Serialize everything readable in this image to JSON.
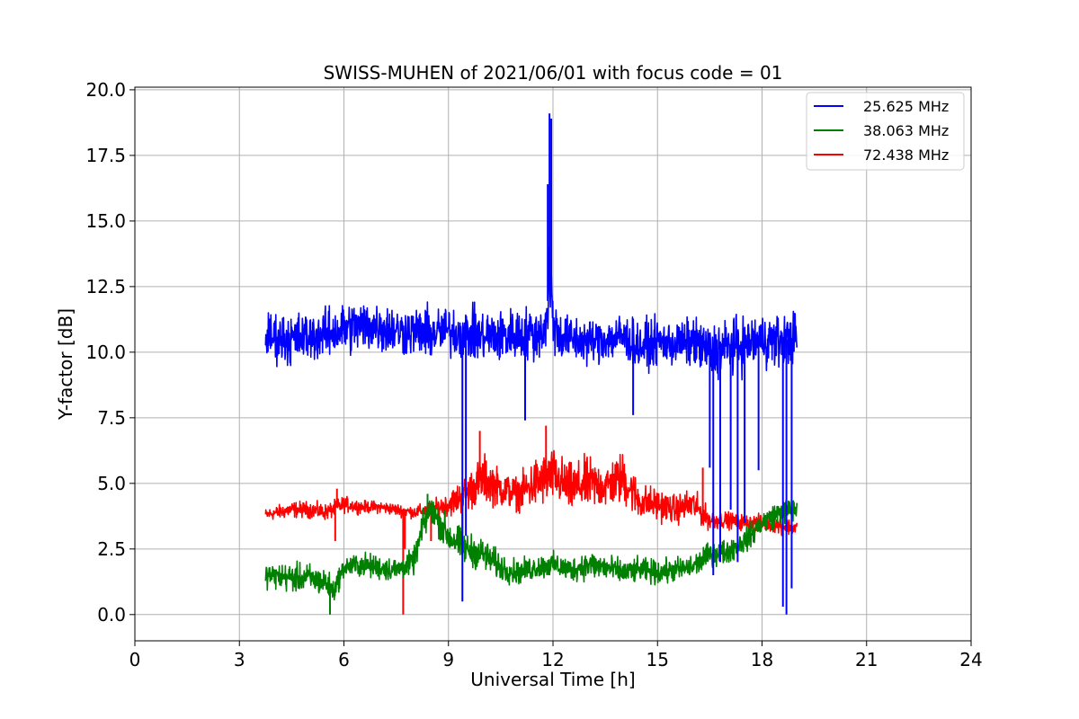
{
  "chart_data": {
    "type": "line",
    "title": "SWISS-MUHEN of 2021/06/01 with focus code = 01",
    "xlabel": "Universal Time [h]",
    "ylabel": "Y-factor [dB]",
    "xlim": [
      0,
      24
    ],
    "ylim": [
      -1.0,
      20.1
    ],
    "xticks": [
      0,
      3,
      6,
      9,
      12,
      15,
      18,
      21,
      24
    ],
    "yticks": [
      0.0,
      2.5,
      5.0,
      7.5,
      10.0,
      12.5,
      15.0,
      17.5,
      20.0
    ],
    "xtick_labels": [
      "0",
      "3",
      "6",
      "9",
      "12",
      "15",
      "18",
      "21",
      "24"
    ],
    "ytick_labels": [
      "0.0",
      "2.5",
      "5.0",
      "7.5",
      "10.0",
      "12.5",
      "15.0",
      "17.5",
      "20.0"
    ],
    "grid": true,
    "legend_position": "top-right",
    "series": [
      {
        "name": "25.625 MHz",
        "color": "#0000ff",
        "x": [
          3.75,
          4.5,
          5.0,
          5.5,
          6.0,
          6.5,
          7.0,
          7.5,
          8.0,
          8.5,
          9.0,
          9.5,
          10.0,
          10.5,
          11.0,
          11.5,
          11.8,
          11.9,
          12.0,
          12.2,
          12.5,
          13.0,
          13.5,
          14.0,
          14.5,
          15.0,
          15.5,
          16.0,
          16.5,
          17.0,
          17.5,
          18.0,
          18.5,
          19.0
        ],
        "y": [
          10.6,
          10.5,
          10.6,
          10.7,
          10.9,
          11.0,
          11.0,
          10.8,
          10.8,
          10.7,
          10.8,
          10.7,
          10.6,
          10.6,
          10.7,
          10.7,
          10.9,
          13.0,
          11.2,
          10.6,
          10.5,
          10.4,
          10.5,
          10.6,
          10.2,
          10.4,
          10.3,
          10.4,
          10.0,
          10.2,
          10.3,
          10.5,
          10.4,
          10.6
        ],
        "band": [
          1.2,
          1.3,
          1.2,
          1.2,
          1.3,
          1.3,
          1.3,
          1.2,
          1.2,
          1.3,
          1.2,
          1.3,
          1.3,
          1.3,
          1.3,
          1.3,
          1.3,
          3.0,
          1.5,
          1.2,
          1.2,
          1.1,
          1.1,
          1.2,
          1.2,
          1.1,
          1.1,
          1.2,
          1.4,
          1.4,
          1.3,
          1.3,
          1.3,
          1.3
        ],
        "spikes": [
          {
            "x": 9.4,
            "y": 0.5
          },
          {
            "x": 9.5,
            "y": 3.0
          },
          {
            "x": 11.2,
            "y": 7.4
          },
          {
            "x": 11.9,
            "y": 19.1
          },
          {
            "x": 11.95,
            "y": 18.9
          },
          {
            "x": 11.85,
            "y": 16.4
          },
          {
            "x": 14.3,
            "y": 7.6
          },
          {
            "x": 16.5,
            "y": 5.6
          },
          {
            "x": 16.6,
            "y": 1.5
          },
          {
            "x": 16.8,
            "y": 2.0
          },
          {
            "x": 17.1,
            "y": 4.0
          },
          {
            "x": 17.3,
            "y": 2.0
          },
          {
            "x": 17.5,
            "y": 3.5
          },
          {
            "x": 17.9,
            "y": 5.5
          },
          {
            "x": 18.6,
            "y": 0.3
          },
          {
            "x": 18.7,
            "y": 0.0
          },
          {
            "x": 18.85,
            "y": 1.0
          }
        ]
      },
      {
        "name": "38.063 MHz",
        "color": "#008000",
        "x": [
          3.75,
          4.5,
          5.0,
          5.5,
          5.7,
          6.0,
          6.5,
          7.0,
          7.5,
          8.0,
          8.3,
          8.5,
          9.0,
          9.5,
          10.0,
          10.5,
          11.0,
          11.5,
          12.0,
          12.5,
          13.0,
          13.5,
          14.0,
          14.5,
          15.0,
          15.5,
          16.0,
          16.5,
          17.0,
          17.5,
          18.0,
          18.5,
          19.0
        ],
        "y": [
          1.5,
          1.4,
          1.4,
          1.2,
          0.9,
          1.8,
          1.9,
          1.8,
          1.7,
          2.0,
          3.5,
          4.0,
          3.0,
          2.5,
          2.3,
          1.8,
          1.6,
          1.8,
          1.9,
          1.7,
          1.9,
          1.8,
          1.6,
          1.7,
          1.6,
          1.7,
          1.8,
          2.3,
          2.4,
          2.8,
          3.5,
          3.9,
          4.0
        ],
        "band": [
          0.6,
          0.7,
          0.7,
          0.7,
          0.6,
          0.5,
          0.6,
          0.6,
          0.6,
          0.6,
          0.8,
          0.7,
          0.9,
          0.8,
          0.8,
          0.7,
          0.6,
          0.6,
          0.6,
          0.6,
          0.7,
          0.7,
          0.6,
          0.6,
          0.6,
          0.6,
          0.6,
          0.6,
          0.6,
          0.6,
          0.6,
          0.6,
          0.6
        ],
        "spikes": [
          {
            "x": 5.6,
            "y": 0.0
          },
          {
            "x": 8.4,
            "y": 4.6
          },
          {
            "x": 9.4,
            "y": 4.2
          }
        ]
      },
      {
        "name": "72.438 MHz",
        "color": "#ff0000",
        "x": [
          3.75,
          4.5,
          5.0,
          5.5,
          6.0,
          6.5,
          7.0,
          7.5,
          8.0,
          8.5,
          9.0,
          9.5,
          10.0,
          10.5,
          11.0,
          11.5,
          12.0,
          12.5,
          13.0,
          13.5,
          14.0,
          14.5,
          15.0,
          15.5,
          16.0,
          16.5,
          17.0,
          17.5,
          18.0,
          18.5,
          19.0
        ],
        "y": [
          3.8,
          4.0,
          4.0,
          3.9,
          4.2,
          4.1,
          4.1,
          4.0,
          3.9,
          4.0,
          4.2,
          4.6,
          5.2,
          4.8,
          4.6,
          5.0,
          5.3,
          4.8,
          5.0,
          4.9,
          5.2,
          4.3,
          4.2,
          4.0,
          4.2,
          3.6,
          3.6,
          3.5,
          3.5,
          3.4,
          3.3
        ],
        "band": [
          0.3,
          0.4,
          0.4,
          0.4,
          0.4,
          0.3,
          0.3,
          0.3,
          0.3,
          0.4,
          0.6,
          0.9,
          1.2,
          0.9,
          0.8,
          1.3,
          1.3,
          1.2,
          1.3,
          1.1,
          1.3,
          0.9,
          0.8,
          0.7,
          0.8,
          0.5,
          0.4,
          0.4,
          0.4,
          0.4,
          0.4
        ],
        "spikes": [
          {
            "x": 5.75,
            "y": 2.8
          },
          {
            "x": 5.8,
            "y": 4.8
          },
          {
            "x": 7.7,
            "y": 0.0
          },
          {
            "x": 7.75,
            "y": 2.5
          },
          {
            "x": 8.5,
            "y": 2.8
          },
          {
            "x": 9.9,
            "y": 7.0
          },
          {
            "x": 11.8,
            "y": 7.2
          },
          {
            "x": 16.3,
            "y": 5.6
          }
        ]
      }
    ]
  }
}
